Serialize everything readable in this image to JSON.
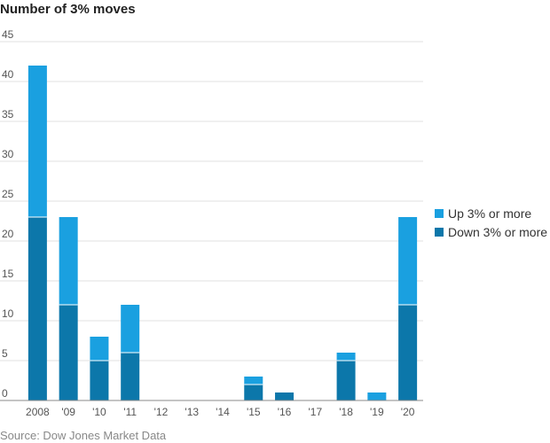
{
  "chart_data": {
    "type": "bar",
    "stacked": true,
    "title": "Number of 3% moves",
    "xlabel": "",
    "ylabel": "",
    "categories": [
      "2008",
      "'09",
      "'10",
      "'11",
      "'12",
      "'13",
      "'14",
      "'15",
      "'16",
      "'17",
      "'18",
      "'19",
      "'20"
    ],
    "series": [
      {
        "name": "Down 3% or more",
        "color": "#0c77aa",
        "values": [
          23,
          12,
          5,
          6,
          0,
          0,
          0,
          2,
          1,
          0,
          5,
          0,
          12
        ]
      },
      {
        "name": "Up 3% or more",
        "color": "#1aa0e0",
        "values": [
          19,
          11,
          3,
          6,
          0,
          0,
          0,
          1,
          0,
          0,
          1,
          1,
          11
        ]
      }
    ],
    "ylim": [
      0,
      45
    ],
    "yticks": [
      0,
      5,
      10,
      15,
      20,
      25,
      30,
      35,
      40,
      45
    ],
    "grid": true,
    "legend_position": "right"
  },
  "source": "Source: Dow Jones Market Data"
}
